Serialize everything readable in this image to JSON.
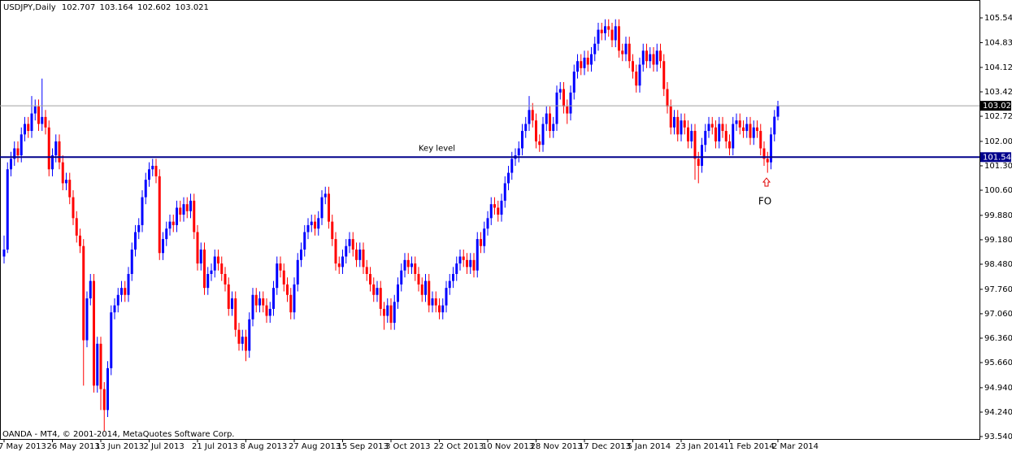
{
  "chart_data": {
    "type": "candlestick",
    "title": "USDJPY,Daily",
    "footer": "OANDA - MT4, © 2001-2014, MetaQuotes Software Corp.",
    "up_color": "#0000ff",
    "down_color": "#ff0000",
    "price_line_color": "#a0a0a0",
    "ylim": [
      93.54,
      105.54
    ],
    "yticks": [
      {
        "value": 93.54,
        "label": "93.540"
      },
      {
        "value": 94.24,
        "label": "94.240"
      },
      {
        "value": 94.94,
        "label": "94.940"
      },
      {
        "value": 95.66,
        "label": "95.660"
      },
      {
        "value": 96.36,
        "label": "96.360"
      },
      {
        "value": 97.06,
        "label": "97.060"
      },
      {
        "value": 97.76,
        "label": "97.760"
      },
      {
        "value": 98.48,
        "label": "98.480"
      },
      {
        "value": 99.18,
        "label": "99.180"
      },
      {
        "value": 99.88,
        "label": "99.880"
      },
      {
        "value": 100.6,
        "label": "100.600"
      },
      {
        "value": 101.3,
        "label": "101.300"
      },
      {
        "value": 102.0,
        "label": "102.000"
      },
      {
        "value": 102.72,
        "label": "102.720"
      },
      {
        "value": 103.42,
        "label": "103.420"
      },
      {
        "value": 104.12,
        "label": "104.120"
      },
      {
        "value": 104.83,
        "label": "104.830"
      },
      {
        "value": 105.54,
        "label": "105.540"
      }
    ],
    "hlines": [
      {
        "value": 101.549,
        "label": "Key level",
        "color": "#00008b"
      }
    ],
    "annotations": [
      {
        "text": "FO"
      }
    ],
    "categories": [
      "7 May 2013",
      null,
      null,
      null,
      null,
      null,
      null,
      null,
      null,
      null,
      null,
      null,
      null,
      null,
      "26 May 2013",
      null,
      null,
      null,
      null,
      null,
      null,
      null,
      null,
      null,
      null,
      null,
      null,
      null,
      "13 Jun 2013",
      null,
      null,
      null,
      null,
      null,
      null,
      null,
      null,
      null,
      null,
      null,
      null,
      null,
      "2 Jul 2013",
      null,
      null,
      null,
      null,
      null,
      null,
      null,
      null,
      null,
      null,
      null,
      null,
      null,
      "21 Jul 2013",
      null,
      null,
      null,
      null,
      null,
      null,
      null,
      null,
      null,
      null,
      null,
      null,
      null,
      "8 Aug 2013",
      null,
      null,
      null,
      null,
      null,
      null,
      null,
      null,
      null,
      null,
      null,
      null,
      null,
      "27 Aug 2013",
      null,
      null,
      null,
      null,
      null,
      null,
      null,
      null,
      null,
      null,
      null,
      null,
      null,
      "15 Sep 2013",
      null,
      null,
      null,
      null,
      null,
      null,
      null,
      null,
      null,
      null,
      null,
      null,
      null,
      "3 Oct 2013",
      null,
      null,
      null,
      null,
      null,
      null,
      null,
      null,
      null,
      null,
      null,
      null,
      null,
      "22 Oct 2013",
      null,
      null,
      null,
      null,
      null,
      null,
      null,
      null,
      null,
      null,
      null,
      null,
      null,
      "10 Nov 2013",
      null,
      null,
      null,
      null,
      null,
      null,
      null,
      null,
      null,
      null,
      null,
      null,
      null,
      "28 Nov 2013",
      null,
      null,
      null,
      null,
      null,
      null,
      null,
      null,
      null,
      null,
      null,
      null,
      null,
      "17 Dec 2013",
      null,
      null,
      null,
      null,
      null,
      null,
      null,
      null,
      null,
      null,
      null,
      null,
      null,
      "5 Jan 2014",
      null,
      null,
      null,
      null,
      null,
      null,
      null,
      null,
      null,
      null,
      null,
      null,
      null,
      "23 Jan 2014",
      null,
      null,
      null,
      null,
      null,
      null,
      null,
      null,
      null,
      null,
      null,
      null,
      null,
      "11 Feb 2014",
      null,
      null,
      null,
      null,
      null,
      null,
      null,
      null,
      null,
      null,
      null,
      null,
      null,
      "2 Mar 2014"
    ],
    "open": [
      98.7,
      98.9,
      101.2,
      101.5,
      101.8,
      101.6,
      102.2,
      102.5,
      102.3,
      102.8,
      103.0,
      102.5,
      102.7,
      102.4,
      101.2,
      101.6,
      102.0,
      101.4,
      100.8,
      100.9,
      100.4,
      99.8,
      99.3,
      99.0,
      96.3,
      97.5,
      98.0,
      95.0,
      96.2,
      94.9,
      94.3,
      95.5,
      97.1,
      97.3,
      97.6,
      97.8,
      97.6,
      98.2,
      98.9,
      99.4,
      99.6,
      100.4,
      100.9,
      101.2,
      101.3,
      101.0,
      98.8,
      99.2,
      99.5,
      99.7,
      99.6,
      100.1,
      99.9,
      100.2,
      100.0,
      100.3,
      99.4,
      98.5,
      98.9,
      97.8,
      98.2,
      98.3,
      98.7,
      98.5,
      98.2,
      97.9,
      97.2,
      97.5,
      96.6,
      96.2,
      96.4,
      96.0,
      96.9,
      97.6,
      97.3,
      97.5,
      97.3,
      97.0,
      97.2,
      97.8,
      98.5,
      98.3,
      97.9,
      97.6,
      97.1,
      97.9,
      98.6,
      98.9,
      99.4,
      99.6,
      99.7,
      99.5,
      99.8,
      100.4,
      100.5,
      99.7,
      99.2,
      98.5,
      98.4,
      98.7,
      99.0,
      99.2,
      98.9,
      98.6,
      98.9,
      98.4,
      98.2,
      97.9,
      97.6,
      97.8,
      97.2,
      97.0,
      97.3,
      96.8,
      97.4,
      97.9,
      98.3,
      98.6,
      98.4,
      98.5,
      98.2,
      97.9,
      97.6,
      98.0,
      97.3,
      97.5,
      97.3,
      97.1,
      97.3,
      97.8,
      98.0,
      98.2,
      98.5,
      98.7,
      98.6,
      98.4,
      98.6,
      98.3,
      99.2,
      99.0,
      99.5,
      99.8,
      100.2,
      100.1,
      99.9,
      100.3,
      100.8,
      101.1,
      101.5,
      101.6,
      101.8,
      102.3,
      102.5,
      102.9,
      102.6,
      102.0,
      101.9,
      102.5,
      102.8,
      102.3,
      102.5,
      103.4,
      103.5,
      103.0,
      102.8,
      103.4,
      104.0,
      104.3,
      104.1,
      104.4,
      104.2,
      104.5,
      104.8,
      105.2,
      105.1,
      105.3,
      105.2,
      104.9,
      105.3,
      104.6,
      104.5,
      104.8,
      104.3,
      104.0,
      103.6,
      104.2,
      104.6,
      104.3,
      104.5,
      104.2,
      104.6,
      104.3,
      103.5,
      103.0,
      102.4,
      102.7,
      102.2,
      102.6,
      102.4,
      102.0,
      102.3,
      101.5,
      101.3,
      101.9,
      102.3,
      102.5,
      102.4,
      102.0,
      102.5,
      102.3,
      102.0,
      101.8,
      102.5,
      102.6,
      102.4,
      102.3,
      102.5,
      102.1,
      102.4,
      102.3,
      101.8,
      101.5,
      101.4,
      102.2,
      102.707
    ],
    "high": [
      99.3,
      101.4,
      101.7,
      102.0,
      102.0,
      102.4,
      102.7,
      102.7,
      103.3,
      103.2,
      103.2,
      103.8,
      102.9,
      102.6,
      101.8,
      102.2,
      102.2,
      101.6,
      101.1,
      101.1,
      100.6,
      100.0,
      99.5,
      99.2,
      97.7,
      98.2,
      98.2,
      96.4,
      96.4,
      95.1,
      95.7,
      97.3,
      97.5,
      97.8,
      98.0,
      98.0,
      98.4,
      99.1,
      99.6,
      99.8,
      100.6,
      101.1,
      101.4,
      101.5,
      101.5,
      101.2,
      99.4,
      99.7,
      99.9,
      99.9,
      100.3,
      100.3,
      100.4,
      100.4,
      100.5,
      100.5,
      99.6,
      99.1,
      99.1,
      98.4,
      98.5,
      98.9,
      98.9,
      98.7,
      98.4,
      98.1,
      97.7,
      97.7,
      96.8,
      96.6,
      96.6,
      97.1,
      97.8,
      97.8,
      97.7,
      97.7,
      97.5,
      97.4,
      98.0,
      98.7,
      98.7,
      98.5,
      98.1,
      97.8,
      98.1,
      98.8,
      99.1,
      99.6,
      99.8,
      99.9,
      99.9,
      100.0,
      100.6,
      100.7,
      100.7,
      99.9,
      99.4,
      98.7,
      98.9,
      99.2,
      99.4,
      99.4,
      99.1,
      99.1,
      99.1,
      98.6,
      98.4,
      98.1,
      98.0,
      98.0,
      97.4,
      97.5,
      97.5,
      97.6,
      98.1,
      98.5,
      98.8,
      98.8,
      98.7,
      98.7,
      98.4,
      98.1,
      98.2,
      98.2,
      97.7,
      97.7,
      97.5,
      97.5,
      98.0,
      98.2,
      98.4,
      98.7,
      98.9,
      98.9,
      98.8,
      98.8,
      98.8,
      99.4,
      99.4,
      99.7,
      100.0,
      100.4,
      100.4,
      100.3,
      100.5,
      101.0,
      101.3,
      101.7,
      101.8,
      102.0,
      102.5,
      102.7,
      103.3,
      103.1,
      102.8,
      102.2,
      102.7,
      103.0,
      103.0,
      102.7,
      103.6,
      103.7,
      103.7,
      103.2,
      103.6,
      104.2,
      104.5,
      104.5,
      104.6,
      104.6,
      104.7,
      105.0,
      105.4,
      105.4,
      105.5,
      105.5,
      105.4,
      105.5,
      105.5,
      104.8,
      105.0,
      105.0,
      104.5,
      104.2,
      104.4,
      104.8,
      104.8,
      104.7,
      104.7,
      104.8,
      104.8,
      104.5,
      103.7,
      103.2,
      102.9,
      102.9,
      102.8,
      102.8,
      102.6,
      102.5,
      102.5,
      101.7,
      102.1,
      102.5,
      102.7,
      102.7,
      102.6,
      102.7,
      102.7,
      102.5,
      102.2,
      102.7,
      102.8,
      102.8,
      102.6,
      102.7,
      102.7,
      102.6,
      102.6,
      102.5,
      102.0,
      101.7,
      102.4,
      102.9,
      103.164
    ],
    "low": [
      98.5,
      98.8,
      101.0,
      101.3,
      101.4,
      101.4,
      102.0,
      102.1,
      102.1,
      102.6,
      102.3,
      102.3,
      102.2,
      101.0,
      101.0,
      101.4,
      101.2,
      100.6,
      100.6,
      100.2,
      99.6,
      99.1,
      98.8,
      95.0,
      96.1,
      97.3,
      94.8,
      94.8,
      94.3,
      93.7,
      94.1,
      95.3,
      96.9,
      97.1,
      97.4,
      97.4,
      97.4,
      98.0,
      98.7,
      99.2,
      99.4,
      100.2,
      100.7,
      101.0,
      100.8,
      98.6,
      98.6,
      99.0,
      99.3,
      99.4,
      99.4,
      99.7,
      99.7,
      99.8,
      99.8,
      99.2,
      98.3,
      98.3,
      97.6,
      97.6,
      98.0,
      98.1,
      98.3,
      98.0,
      97.7,
      97.0,
      97.0,
      96.4,
      96.0,
      96.0,
      95.7,
      95.8,
      96.7,
      97.1,
      97.1,
      97.1,
      96.8,
      96.8,
      97.0,
      97.6,
      98.1,
      97.7,
      97.4,
      96.9,
      96.9,
      97.7,
      98.4,
      98.7,
      99.2,
      99.4,
      99.3,
      99.3,
      99.6,
      100.2,
      99.5,
      99.0,
      98.3,
      98.2,
      98.2,
      98.5,
      98.8,
      98.7,
      98.4,
      98.4,
      98.2,
      98.0,
      97.7,
      97.4,
      97.4,
      97.0,
      96.6,
      96.8,
      96.6,
      96.6,
      97.2,
      97.7,
      98.1,
      98.2,
      98.2,
      98.0,
      97.7,
      97.4,
      97.4,
      97.1,
      97.1,
      97.1,
      96.9,
      96.9,
      97.1,
      97.6,
      97.8,
      98.0,
      98.3,
      98.4,
      98.2,
      98.2,
      98.1,
      98.1,
      98.8,
      98.8,
      99.3,
      99.6,
      99.9,
      99.7,
      99.7,
      100.1,
      100.6,
      100.9,
      101.3,
      101.4,
      101.6,
      102.1,
      102.3,
      102.4,
      101.8,
      101.7,
      101.7,
      102.3,
      102.1,
      102.1,
      102.3,
      103.2,
      102.8,
      102.5,
      102.6,
      103.2,
      103.8,
      103.9,
      103.9,
      104.0,
      104.0,
      104.3,
      104.6,
      104.9,
      104.9,
      105.0,
      104.7,
      104.7,
      104.4,
      104.3,
      104.3,
      104.1,
      103.8,
      103.4,
      103.4,
      104.0,
      104.1,
      104.1,
      104.0,
      104.0,
      104.1,
      103.3,
      102.8,
      102.2,
      102.2,
      102.0,
      102.0,
      102.2,
      101.8,
      101.8,
      100.9,
      100.8,
      101.1,
      101.7,
      102.1,
      102.2,
      101.8,
      101.8,
      102.1,
      101.8,
      101.6,
      101.6,
      102.3,
      102.2,
      102.1,
      102.1,
      101.9,
      101.9,
      102.1,
      101.6,
      101.3,
      101.1,
      101.2,
      102.0,
      102.602
    ],
    "close": [
      98.9,
      101.2,
      101.5,
      101.8,
      101.6,
      102.2,
      102.5,
      102.3,
      102.8,
      103.0,
      102.5,
      102.7,
      102.4,
      101.2,
      101.6,
      102.0,
      101.4,
      100.8,
      100.9,
      100.4,
      99.8,
      99.3,
      99.0,
      96.3,
      97.5,
      98.0,
      95.0,
      96.2,
      94.9,
      94.3,
      95.5,
      97.1,
      97.3,
      97.6,
      97.8,
      97.6,
      98.2,
      98.9,
      99.4,
      99.6,
      100.4,
      100.9,
      101.2,
      101.3,
      101.0,
      98.8,
      99.2,
      99.5,
      99.7,
      99.6,
      100.1,
      99.9,
      100.2,
      100.0,
      100.3,
      99.4,
      98.5,
      98.9,
      97.8,
      98.2,
      98.3,
      98.7,
      98.5,
      98.2,
      97.9,
      97.2,
      97.5,
      96.6,
      96.2,
      96.4,
      96.0,
      96.9,
      97.6,
      97.3,
      97.5,
      97.3,
      97.0,
      97.2,
      97.8,
      98.5,
      98.3,
      97.9,
      97.6,
      97.1,
      97.9,
      98.6,
      98.9,
      99.4,
      99.6,
      99.7,
      99.5,
      99.8,
      100.4,
      100.5,
      99.7,
      99.2,
      98.5,
      98.4,
      98.7,
      99.0,
      99.2,
      98.9,
      98.6,
      98.9,
      98.4,
      98.2,
      97.9,
      97.6,
      97.8,
      97.2,
      97.0,
      97.3,
      96.8,
      97.4,
      97.9,
      98.3,
      98.6,
      98.4,
      98.5,
      98.2,
      97.9,
      97.6,
      98.0,
      97.3,
      97.5,
      97.3,
      97.1,
      97.3,
      97.8,
      98.0,
      98.2,
      98.5,
      98.7,
      98.6,
      98.4,
      98.6,
      98.3,
      99.2,
      99.0,
      99.5,
      99.8,
      100.2,
      100.1,
      99.9,
      100.3,
      100.8,
      101.1,
      101.5,
      101.6,
      101.8,
      102.3,
      102.5,
      102.9,
      102.6,
      102.0,
      101.9,
      102.5,
      102.8,
      102.3,
      102.5,
      103.4,
      103.5,
      103.0,
      102.8,
      103.4,
      104.0,
      104.3,
      104.1,
      104.4,
      104.2,
      104.5,
      104.8,
      105.2,
      105.1,
      105.3,
      105.2,
      104.9,
      105.3,
      104.6,
      104.5,
      104.8,
      104.3,
      104.0,
      103.6,
      104.2,
      104.6,
      104.3,
      104.5,
      104.2,
      104.6,
      104.3,
      103.5,
      103.0,
      102.4,
      102.7,
      102.2,
      102.6,
      102.4,
      102.0,
      102.3,
      101.5,
      101.3,
      101.9,
      102.3,
      102.5,
      102.4,
      102.0,
      102.5,
      102.3,
      102.0,
      101.8,
      102.5,
      102.6,
      102.4,
      102.3,
      102.5,
      102.1,
      102.4,
      102.3,
      101.8,
      101.5,
      101.4,
      102.2,
      102.707,
      103.021
    ]
  }
}
